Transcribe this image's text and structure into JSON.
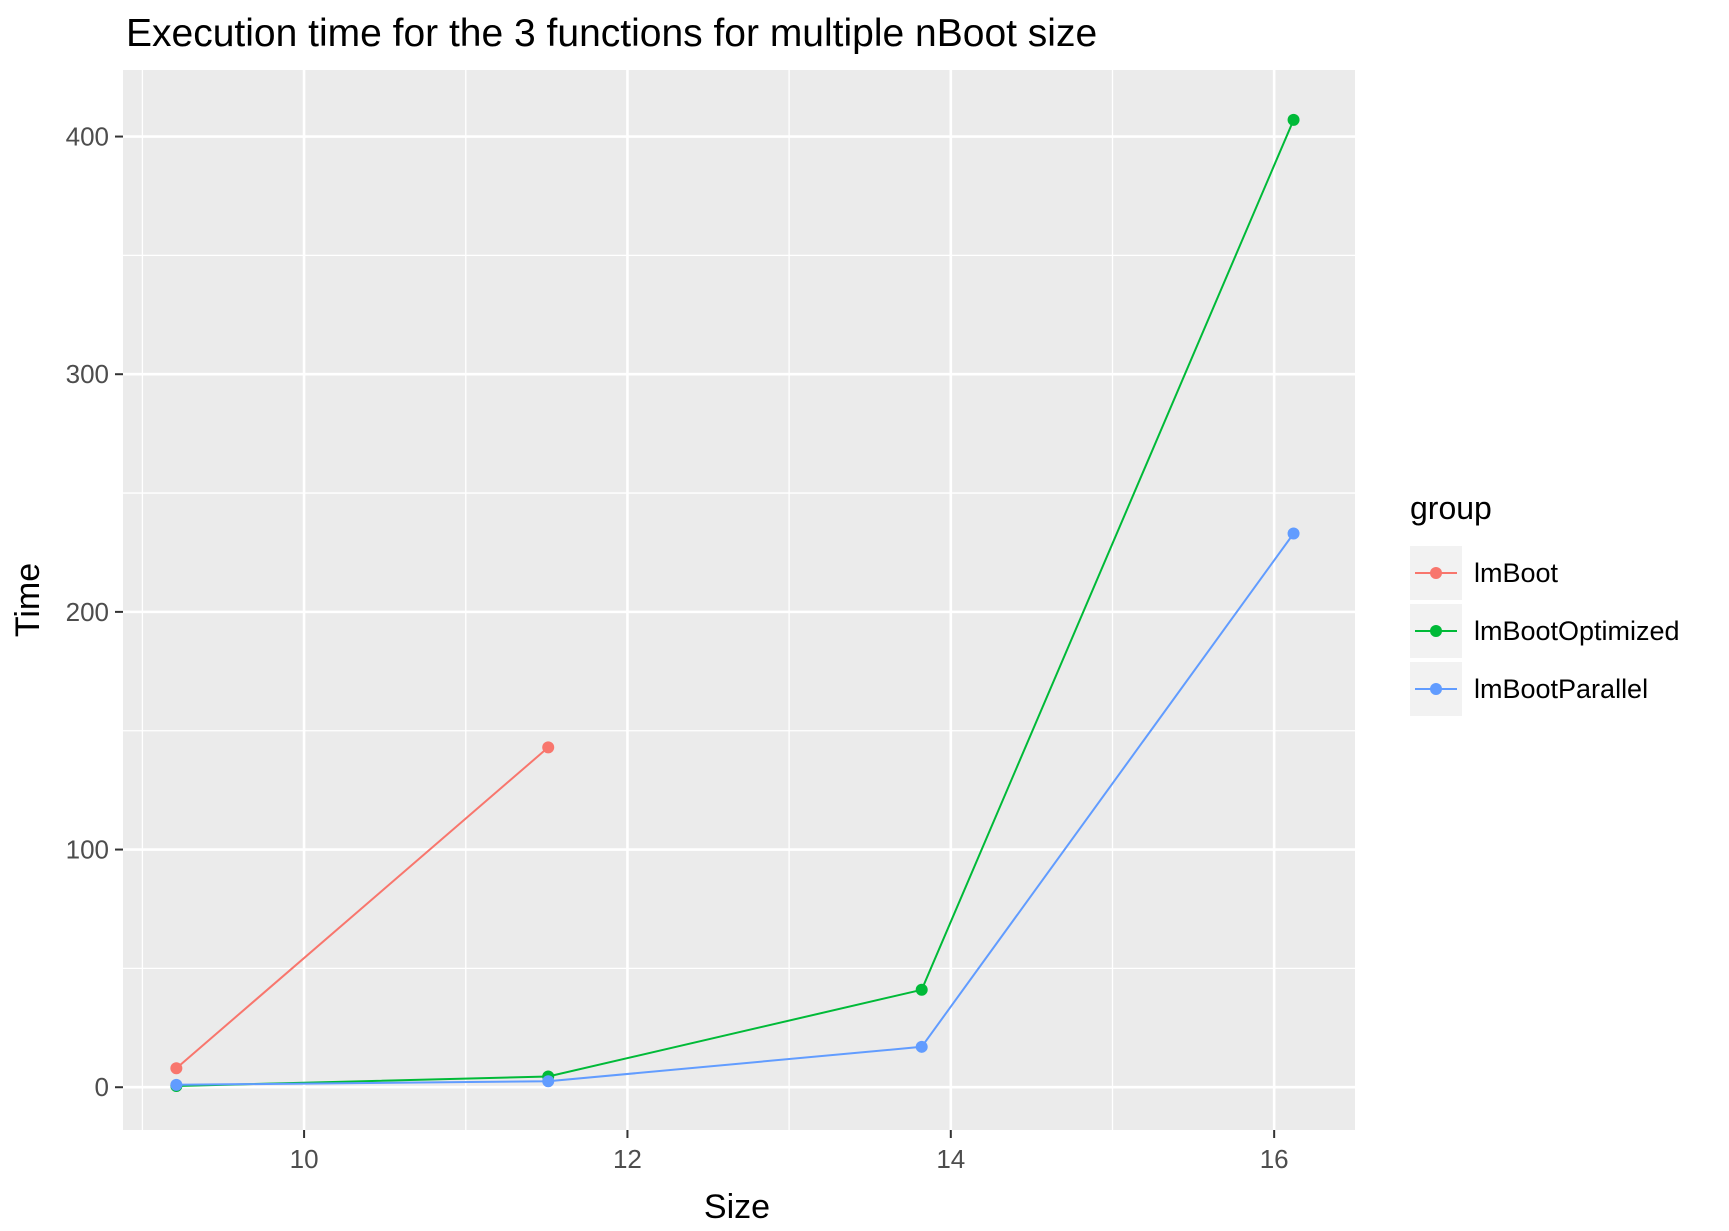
{
  "chart_data": {
    "type": "line",
    "title": "Execution time for the 3 functions for multiple nBoot size",
    "xlabel": "Size",
    "ylabel": "Time",
    "xlim": [
      8.88,
      16.5
    ],
    "ylim": [
      -18,
      428
    ],
    "xticks": [
      10,
      12,
      14,
      16
    ],
    "yticks": [
      0,
      100,
      200,
      300,
      400
    ],
    "xtick_labels": [
      "10",
      "12",
      "14",
      "16"
    ],
    "ytick_labels": [
      "0",
      "100",
      "200",
      "300",
      "400"
    ],
    "grid": true,
    "legend": {
      "title": "group",
      "placement": "right"
    },
    "series": [
      {
        "name": "lmBoot",
        "color": "#F8766D",
        "x": [
          9.21,
          11.51
        ],
        "y": [
          8,
          143
        ]
      },
      {
        "name": "lmBootOptimized",
        "color": "#00BA38",
        "x": [
          9.21,
          11.51,
          13.82,
          16.12
        ],
        "y": [
          0.5,
          4.5,
          41,
          407
        ]
      },
      {
        "name": "lmBootParallel",
        "color": "#619CFF",
        "x": [
          9.21,
          11.51,
          13.82,
          16.12
        ],
        "y": [
          1,
          2.5,
          17,
          233
        ]
      }
    ]
  }
}
